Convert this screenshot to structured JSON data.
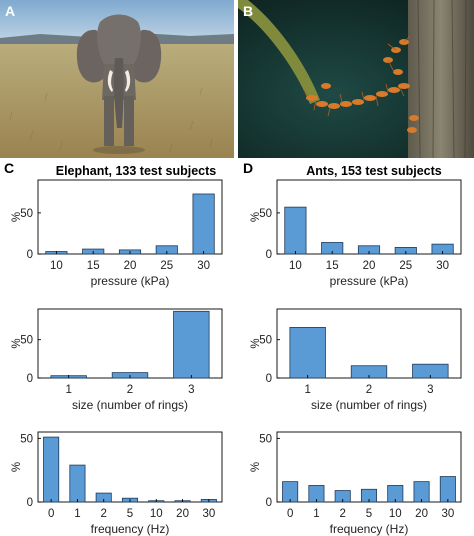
{
  "panels": {
    "a": {
      "letter": "A",
      "photo": "elephant-photo"
    },
    "b": {
      "letter": "B",
      "photo": "ant-bridge-photo"
    },
    "c": {
      "letter": "C",
      "title": "Elephant, 133 test subjects"
    },
    "d": {
      "letter": "D",
      "title": "Ants, 153 test subjects"
    }
  },
  "colors": {
    "bar_fill": "#5b9bd5",
    "bar_stroke": "#1f3a5a",
    "axis": "#000000"
  },
  "chart_data": [
    {
      "id": "c-pressure",
      "type": "bar",
      "categories": [
        "10",
        "15",
        "20",
        "25",
        "30"
      ],
      "values": [
        3,
        6,
        5,
        10,
        73
      ],
      "xlabel": "pressure (kPa)",
      "ylabel": "%",
      "ylim": [
        0,
        90
      ],
      "yticks": [
        0,
        50
      ]
    },
    {
      "id": "d-pressure",
      "type": "bar",
      "categories": [
        "10",
        "15",
        "20",
        "25",
        "30"
      ],
      "values": [
        57,
        14,
        10,
        8,
        12
      ],
      "xlabel": "pressure (kPa)",
      "ylabel": "%",
      "ylim": [
        0,
        90
      ],
      "yticks": [
        0,
        50
      ]
    },
    {
      "id": "c-size",
      "type": "bar",
      "categories": [
        "1",
        "2",
        "3"
      ],
      "values": [
        3,
        7,
        87
      ],
      "xlabel": "size (number of rings)",
      "ylabel": "%",
      "ylim": [
        0,
        90
      ],
      "yticks": [
        0,
        50
      ]
    },
    {
      "id": "d-size",
      "type": "bar",
      "categories": [
        "1",
        "2",
        "3"
      ],
      "values": [
        66,
        16,
        18
      ],
      "xlabel": "size (number of rings)",
      "ylabel": "%",
      "ylim": [
        0,
        90
      ],
      "yticks": [
        0,
        50
      ]
    },
    {
      "id": "c-frequency",
      "type": "bar",
      "categories": [
        "0",
        "1",
        "2",
        "5",
        "10",
        "20",
        "30"
      ],
      "values": [
        51,
        29,
        7,
        3,
        1,
        1,
        2
      ],
      "xlabel": "frequency (Hz)",
      "ylabel": "%",
      "ylim": [
        0,
        55
      ],
      "yticks": [
        0,
        50
      ]
    },
    {
      "id": "d-frequency",
      "type": "bar",
      "categories": [
        "0",
        "1",
        "2",
        "5",
        "10",
        "20",
        "30"
      ],
      "values": [
        16,
        13,
        9,
        10,
        13,
        16,
        20
      ],
      "xlabel": "frequency (Hz)",
      "ylabel": "%",
      "ylim": [
        0,
        55
      ],
      "yticks": [
        0,
        50
      ]
    }
  ]
}
